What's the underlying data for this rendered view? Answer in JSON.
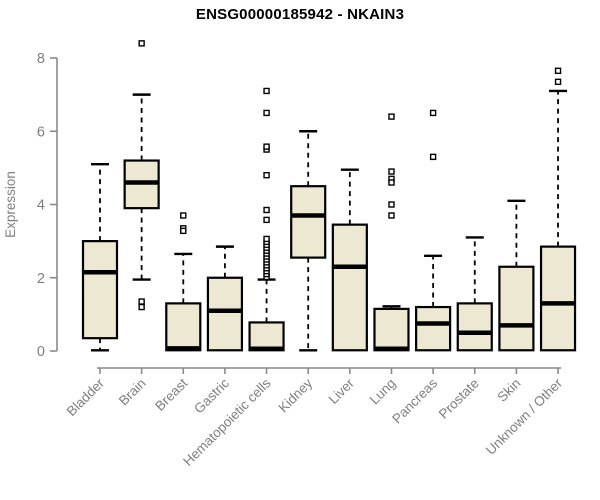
{
  "chart_data": {
    "type": "boxplot",
    "title": "ENSG00000185942 - NKAIN3",
    "ylabel": "Expression",
    "ylim": [
      0,
      8
    ],
    "yticks": [
      0,
      2,
      4,
      6,
      8
    ],
    "grid": false,
    "legend": "none",
    "categories": [
      "Bladder",
      "Brain",
      "Breast",
      "Gastric",
      "Hematopoietic cells",
      "Kidney",
      "Liver",
      "Lung",
      "Pancreas",
      "Prostate",
      "Skin",
      "Unknown / Other"
    ],
    "series": [
      {
        "category": "Bladder",
        "whisker_low": 0.02,
        "q1": 0.35,
        "median": 2.15,
        "q3": 3.0,
        "whisker_high": 5.1,
        "outliers": []
      },
      {
        "category": "Brain",
        "whisker_low": 1.95,
        "q1": 3.9,
        "median": 4.6,
        "q3": 5.2,
        "whisker_high": 7.0,
        "outliers": [
          8.4,
          1.35,
          1.2
        ]
      },
      {
        "category": "Breast",
        "whisker_low": 0.02,
        "q1": 0.02,
        "median": 0.07,
        "q3": 1.3,
        "whisker_high": 2.65,
        "outliers": [
          3.7,
          3.35,
          3.28
        ]
      },
      {
        "category": "Gastric",
        "whisker_low": 0.02,
        "q1": 0.02,
        "median": 1.1,
        "q3": 2.0,
        "whisker_high": 2.85,
        "outliers": []
      },
      {
        "category": "Hematopoietic cells",
        "whisker_low": 0.02,
        "q1": 0.02,
        "median": 0.06,
        "q3": 0.78,
        "whisker_high": 1.95,
        "outliers": [
          2.02,
          2.1,
          2.18,
          2.26,
          2.34,
          2.42,
          2.5,
          2.58,
          2.66,
          2.74,
          2.82,
          2.9,
          2.98,
          3.06,
          3.58,
          3.85,
          4.8,
          5.5,
          5.58,
          6.5,
          7.1
        ]
      },
      {
        "category": "Kidney",
        "whisker_low": 0.02,
        "q1": 2.55,
        "median": 3.7,
        "q3": 4.5,
        "whisker_high": 6.0,
        "outliers": []
      },
      {
        "category": "Liver",
        "whisker_low": 0.02,
        "q1": 0.02,
        "median": 2.3,
        "q3": 3.45,
        "whisker_high": 4.95,
        "outliers": []
      },
      {
        "category": "Lung",
        "whisker_low": 0.02,
        "q1": 0.02,
        "median": 0.06,
        "q3": 1.15,
        "whisker_high": 1.22,
        "outliers": [
          6.4,
          4.9,
          4.7,
          4.6,
          4.0,
          3.7
        ]
      },
      {
        "category": "Pancreas",
        "whisker_low": 0.02,
        "q1": 0.02,
        "median": 0.75,
        "q3": 1.2,
        "whisker_high": 2.6,
        "outliers": [
          6.5,
          5.3
        ]
      },
      {
        "category": "Prostate",
        "whisker_low": 0.02,
        "q1": 0.02,
        "median": 0.5,
        "q3": 1.3,
        "whisker_high": 3.1,
        "outliers": []
      },
      {
        "category": "Skin",
        "whisker_low": 0.02,
        "q1": 0.02,
        "median": 0.7,
        "q3": 2.3,
        "whisker_high": 4.1,
        "outliers": []
      },
      {
        "category": "Unknown / Other",
        "whisker_low": 0.02,
        "q1": 0.02,
        "median": 1.3,
        "q3": 2.85,
        "whisker_high": 7.1,
        "outliers": [
          7.65,
          7.35
        ]
      }
    ],
    "colors": {
      "box_fill": "#EDE8D1",
      "box_border": "#000000",
      "median": "#000000",
      "whisker": "#000000",
      "axis": "#8a8a8a",
      "label": "#7f7f7f",
      "title": "#000000",
      "background": "#ffffff"
    }
  }
}
